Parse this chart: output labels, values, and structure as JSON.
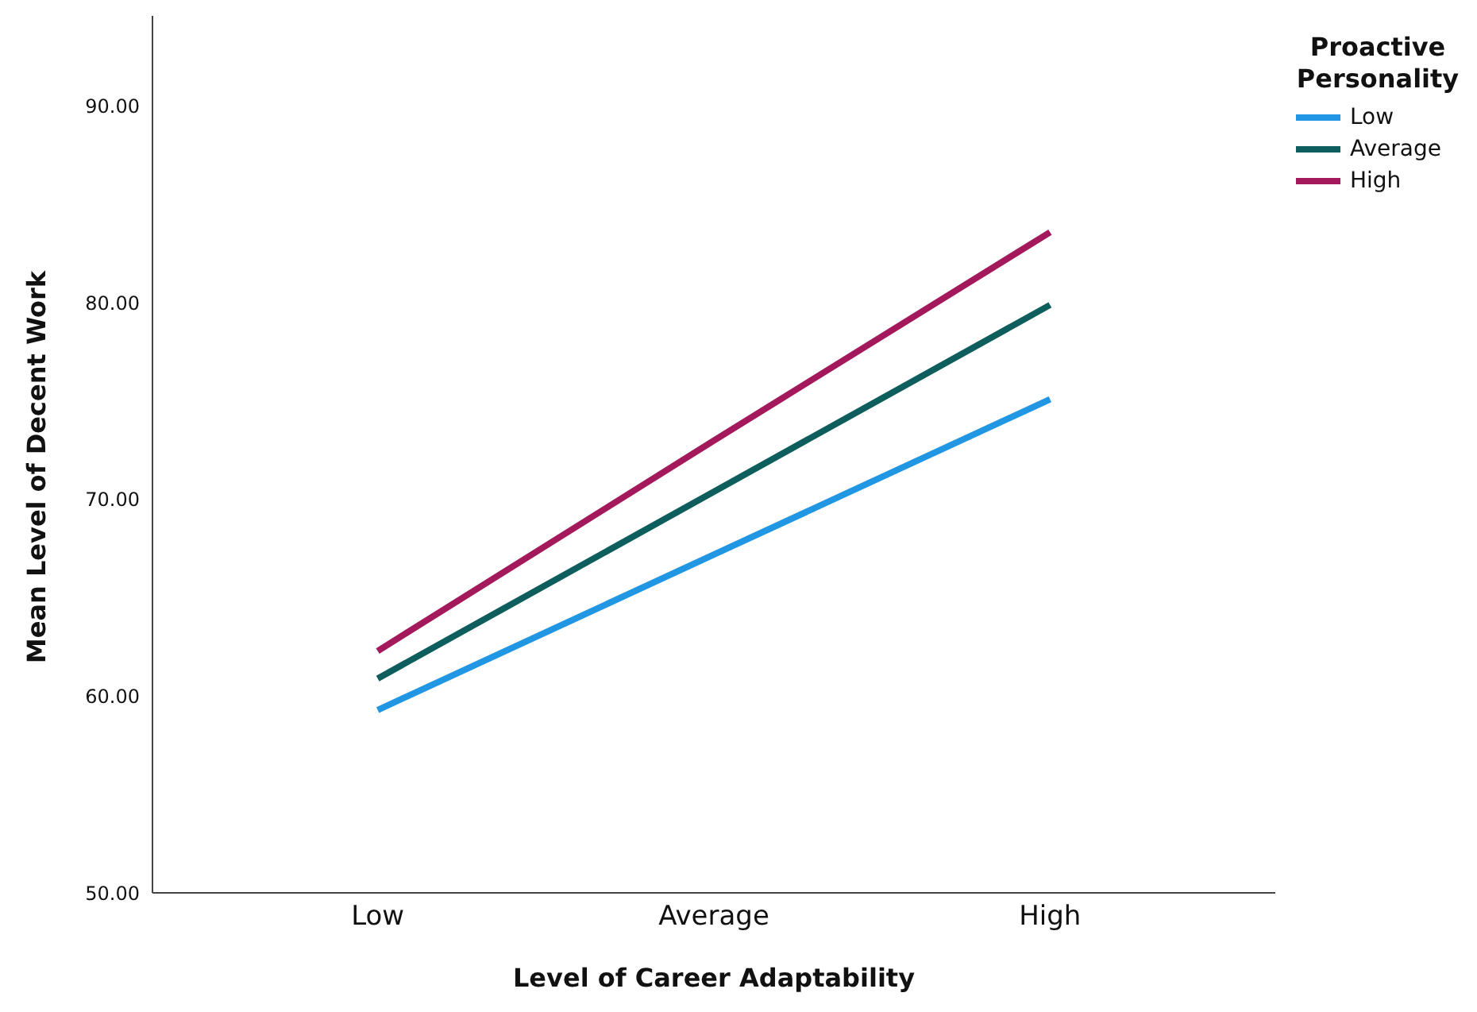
{
  "chart_data": {
    "type": "line",
    "xlabel": "Level of Career Adaptability",
    "ylabel": "Mean Level of Decent Work",
    "legend_title": "Proactive Personality",
    "categories": [
      "Low",
      "Average",
      "High"
    ],
    "series": [
      {
        "name": "Low",
        "color": "#2196e3",
        "values": [
          59.3,
          67.2,
          75.1
        ]
      },
      {
        "name": "Average",
        "color": "#0d5e5c",
        "values": [
          60.9,
          70.4,
          79.9
        ]
      },
      {
        "name": "High",
        "color": "#a3195b",
        "values": [
          62.3,
          73.0,
          83.6
        ]
      }
    ],
    "ylim": [
      50,
      94.6
    ],
    "yticks": [
      {
        "value": 50,
        "label": "50.00"
      },
      {
        "value": 60,
        "label": "60.00"
      },
      {
        "value": 70,
        "label": "70.00"
      },
      {
        "value": 80,
        "label": "80.00"
      },
      {
        "value": 90,
        "label": "90.00"
      }
    ],
    "grid": false,
    "legend": "top right",
    "marker": "none",
    "line_style": "solid"
  }
}
